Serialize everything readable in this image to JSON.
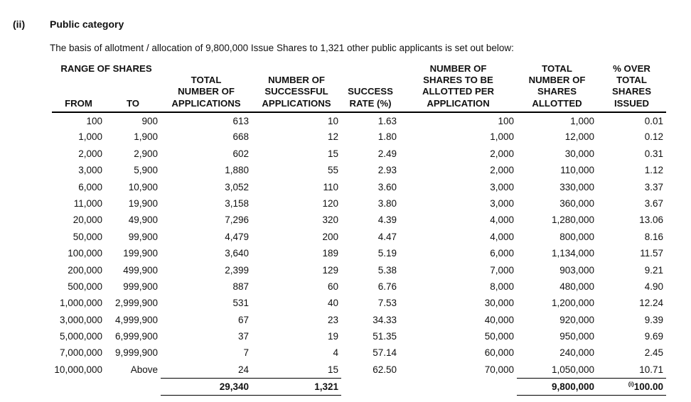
{
  "page": {
    "section_marker": "(ii)",
    "section_title": "Public category",
    "intro_text": "The basis of allotment / allocation of 9,800,000 Issue Shares to 1,321 other public applicants is set out below:"
  },
  "table": {
    "headers": {
      "range_group": "RANGE OF SHARES",
      "from": "FROM",
      "to": "TO",
      "total_applications": "TOTAL\nNUMBER OF\nAPPLICATIONS",
      "successful_applications": "NUMBER OF\nSUCCESSFUL\nAPPLICATIONS",
      "success_rate": "SUCCESS\nRATE (%)",
      "shares_per_application": "NUMBER OF\nSHARES TO BE\nALLOTTED PER\nAPPLICATION",
      "shares_allotted": "TOTAL\nNUMBER OF\nSHARES\nALLOTTED",
      "percent_over_issued": "% OVER\nTOTAL\nSHARES\nISSUED"
    },
    "rows": [
      [
        "100",
        "900",
        "613",
        "10",
        "1.63",
        "100",
        "1,000",
        "0.01"
      ],
      [
        "1,000",
        "1,900",
        "668",
        "12",
        "1.80",
        "1,000",
        "12,000",
        "0.12"
      ],
      [
        "2,000",
        "2,900",
        "602",
        "15",
        "2.49",
        "2,000",
        "30,000",
        "0.31"
      ],
      [
        "3,000",
        "5,900",
        "1,880",
        "55",
        "2.93",
        "2,000",
        "110,000",
        "1.12"
      ],
      [
        "6,000",
        "10,900",
        "3,052",
        "110",
        "3.60",
        "3,000",
        "330,000",
        "3.37"
      ],
      [
        "11,000",
        "19,900",
        "3,158",
        "120",
        "3.80",
        "3,000",
        "360,000",
        "3.67"
      ],
      [
        "20,000",
        "49,900",
        "7,296",
        "320",
        "4.39",
        "4,000",
        "1,280,000",
        "13.06"
      ],
      [
        "50,000",
        "99,900",
        "4,479",
        "200",
        "4.47",
        "4,000",
        "800,000",
        "8.16"
      ],
      [
        "100,000",
        "199,900",
        "3,640",
        "189",
        "5.19",
        "6,000",
        "1,134,000",
        "11.57"
      ],
      [
        "200,000",
        "499,900",
        "2,399",
        "129",
        "5.38",
        "7,000",
        "903,000",
        "9.21"
      ],
      [
        "500,000",
        "999,900",
        "887",
        "60",
        "6.76",
        "8,000",
        "480,000",
        "4.90"
      ],
      [
        "1,000,000",
        "2,999,900",
        "531",
        "40",
        "7.53",
        "30,000",
        "1,200,000",
        "12.24"
      ],
      [
        "3,000,000",
        "4,999,900",
        "67",
        "23",
        "34.33",
        "40,000",
        "920,000",
        "9.39"
      ],
      [
        "5,000,000",
        "6,999,900",
        "37",
        "19",
        "51.35",
        "50,000",
        "950,000",
        "9.69"
      ],
      [
        "7,000,000",
        "9,999,900",
        "7",
        "4",
        "57.14",
        "60,000",
        "240,000",
        "2.45"
      ],
      [
        "10,000,000",
        "Above",
        "24",
        "15",
        "62.50",
        "70,000",
        "1,050,000",
        "10.71"
      ]
    ],
    "totals": {
      "total_applications": "29,340",
      "successful_applications": "1,321",
      "shares_allotted": "9,800,000",
      "percent_prefix": "(i)",
      "percent": "100.00"
    }
  }
}
